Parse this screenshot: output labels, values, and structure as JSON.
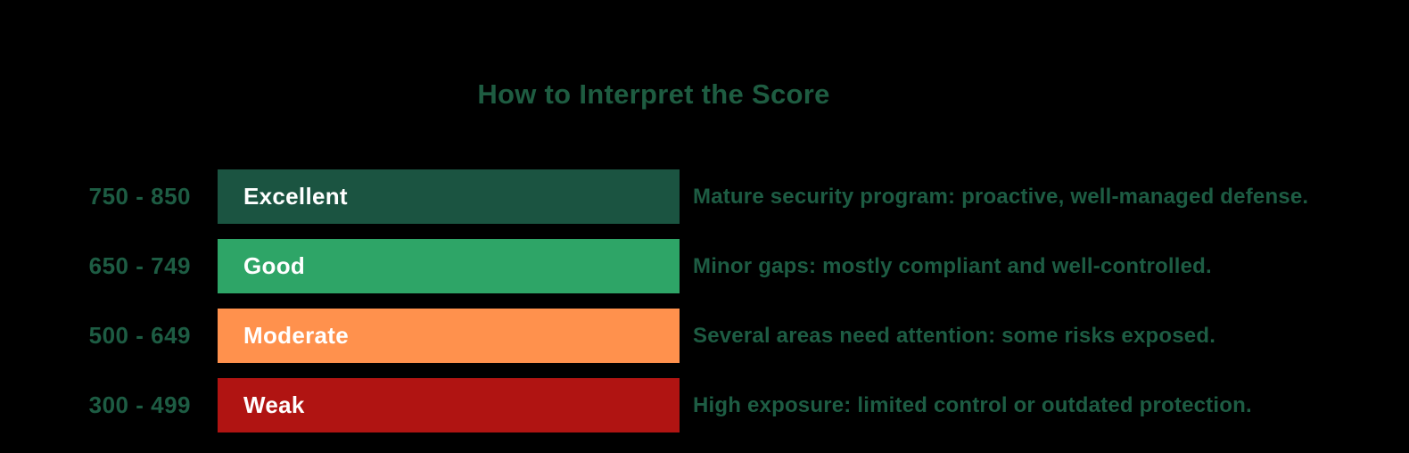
{
  "page": {
    "title": "How to Interpret the Score"
  },
  "colors": {
    "background": "#000000",
    "title_text": "#1E5C41",
    "range_text": "#1D5C43",
    "description_text": "#1D5C43",
    "bar_label_text": "#FFFFFF",
    "excellent_bar": "#1B5441",
    "good_bar": "#2EA567",
    "moderate_bar": "#FF914D",
    "weak_bar": "#B01412"
  },
  "rows": [
    {
      "range": "750 - 850",
      "label": "Excellent",
      "color": "#1B5441",
      "description": "Mature security program: proactive, well-managed defense."
    },
    {
      "range": "650 - 749",
      "label": "Good",
      "color": "#2EA567",
      "description": "Minor gaps: mostly compliant and well-controlled."
    },
    {
      "range": "500 - 649",
      "label": "Moderate",
      "color": "#FF914D",
      "description": "Several areas need attention: some risks exposed."
    },
    {
      "range": "300 - 499",
      "label": "Weak",
      "color": "#B01412",
      "description": "High exposure: limited control or outdated protection."
    }
  ],
  "chart_data": {
    "type": "table",
    "title": "How to Interpret the Score",
    "columns": [
      "score_range",
      "rating",
      "description"
    ],
    "rows": [
      [
        "750 - 850",
        "Excellent",
        "Mature security program: proactive, well-managed defense."
      ],
      [
        "650 - 749",
        "Good",
        "Minor gaps: mostly compliant and well-controlled."
      ],
      [
        "500 - 649",
        "Moderate",
        "Several areas need attention: some risks exposed."
      ],
      [
        "300 - 499",
        "Weak",
        "High exposure: limited control or outdated protection."
      ]
    ],
    "rating_colors": {
      "Excellent": "#1B5441",
      "Good": "#2EA567",
      "Moderate": "#FF914D",
      "Weak": "#B01412"
    },
    "score_range_min": 300,
    "score_range_max": 850,
    "layout": "horizontal color bands with score ranges left and descriptions right, dark background"
  }
}
